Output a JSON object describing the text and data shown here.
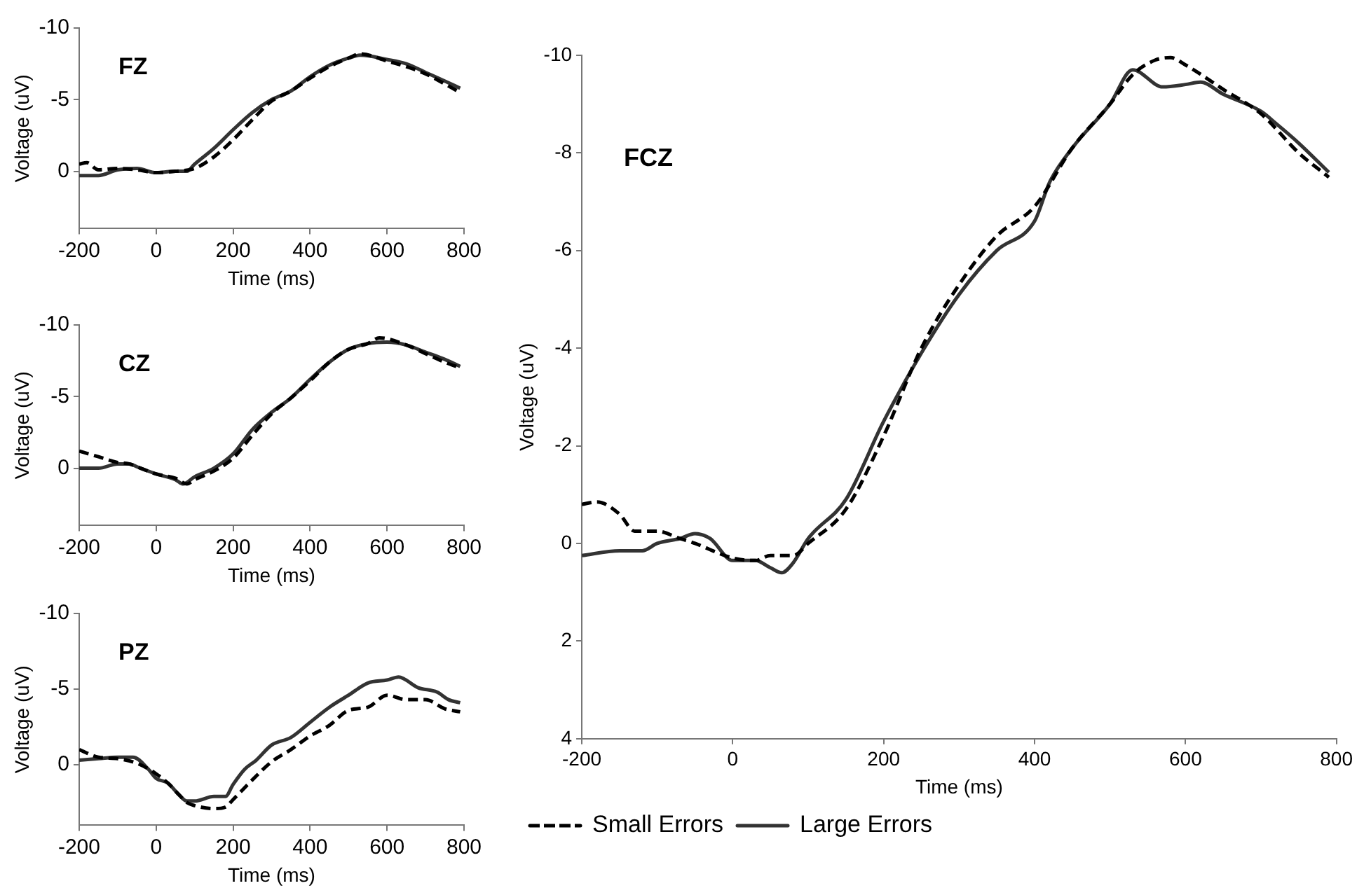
{
  "chart_data": [
    {
      "type": "line",
      "title": "FZ",
      "xlabel": "Time (ms)",
      "ylabel": "Voltage (uV)",
      "xlim": [
        -200,
        800
      ],
      "xticks": [
        -200,
        0,
        200,
        400,
        600,
        800
      ],
      "ylim": [
        4,
        -10
      ],
      "yticks": [
        -10,
        -5,
        0
      ],
      "legend": false,
      "series": [
        {
          "color": "#000000",
          "line_style": "dashed",
          "x": [
            -200,
            -180,
            -150,
            -100,
            -50,
            0,
            50,
            100,
            150,
            200,
            250,
            300,
            350,
            400,
            450,
            500,
            530,
            600,
            650,
            700,
            750,
            790
          ],
          "values": [
            -0.5,
            -0.6,
            -0.1,
            -0.2,
            -0.1,
            0.1,
            0,
            -0.2,
            -1.0,
            -2.2,
            -3.6,
            -4.9,
            -5.6,
            -6.5,
            -7.3,
            -7.9,
            -8.2,
            -7.7,
            -7.3,
            -6.8,
            -6.1,
            -5.5
          ]
        },
        {
          "color": "#333333",
          "line_style": "solid",
          "x": [
            -200,
            -150,
            -100,
            -50,
            0,
            50,
            80,
            100,
            150,
            200,
            250,
            300,
            350,
            400,
            450,
            500,
            530,
            600,
            650,
            700,
            750,
            790
          ],
          "values": [
            0.3,
            0.3,
            -0.1,
            -0.2,
            0.1,
            0,
            0,
            -0.5,
            -1.6,
            -2.9,
            -4.1,
            -5.0,
            -5.6,
            -6.6,
            -7.4,
            -7.9,
            -8.1,
            -7.8,
            -7.5,
            -6.9,
            -6.3,
            -5.8
          ]
        }
      ]
    },
    {
      "type": "line",
      "title": "CZ",
      "xlabel": "Time (ms)",
      "ylabel": "Voltage (uV)",
      "xlim": [
        -200,
        800
      ],
      "xticks": [
        -200,
        0,
        200,
        400,
        600,
        800
      ],
      "ylim": [
        4,
        -10
      ],
      "yticks": [
        -10,
        -5,
        0
      ],
      "legend": false,
      "series": [
        {
          "color": "#000000",
          "line_style": "dashed",
          "x": [
            -200,
            -150,
            -100,
            -70,
            -50,
            0,
            50,
            80,
            100,
            150,
            200,
            250,
            300,
            350,
            400,
            450,
            500,
            550,
            580,
            650,
            700,
            750,
            790
          ],
          "values": [
            -1.2,
            -0.8,
            -0.4,
            -0.3,
            -0.1,
            0.4,
            0.7,
            1.1,
            0.8,
            0.2,
            -0.7,
            -2.3,
            -3.8,
            -4.9,
            -6.1,
            -7.4,
            -8.3,
            -8.7,
            -9.1,
            -8.6,
            -8.0,
            -7.4,
            -7.0
          ]
        },
        {
          "color": "#333333",
          "line_style": "solid",
          "x": [
            -200,
            -150,
            -100,
            -70,
            -50,
            0,
            50,
            70,
            100,
            150,
            200,
            250,
            300,
            350,
            400,
            450,
            500,
            550,
            600,
            650,
            700,
            750,
            790
          ],
          "values": [
            0,
            0,
            -0.3,
            -0.3,
            -0.1,
            0.4,
            0.8,
            1.1,
            0.6,
            0,
            -1.0,
            -2.7,
            -3.9,
            -4.9,
            -6.2,
            -7.4,
            -8.3,
            -8.7,
            -8.8,
            -8.6,
            -8.1,
            -7.6,
            -7.1
          ]
        }
      ]
    },
    {
      "type": "line",
      "title": "PZ",
      "xlabel": "Time (ms)",
      "ylabel": "Voltage (uV)",
      "xlim": [
        -200,
        800
      ],
      "xticks": [
        -200,
        0,
        200,
        400,
        600,
        800
      ],
      "ylim": [
        4,
        -10
      ],
      "yticks": [
        -10,
        -5,
        0
      ],
      "legend": false,
      "series": [
        {
          "color": "#000000",
          "line_style": "dashed",
          "x": [
            -200,
            -150,
            -100,
            -50,
            0,
            30,
            60,
            80,
            100,
            150,
            180,
            200,
            250,
            300,
            350,
            400,
            450,
            500,
            550,
            600,
            650,
            700,
            750,
            790
          ],
          "values": [
            -1.0,
            -0.5,
            -0.4,
            -0.1,
            0.6,
            1.2,
            2.0,
            2.5,
            2.7,
            2.9,
            2.8,
            2.3,
            1.0,
            -0.2,
            -1.0,
            -1.9,
            -2.6,
            -3.6,
            -3.8,
            -4.6,
            -4.3,
            -4.3,
            -3.7,
            -3.5
          ]
        },
        {
          "color": "#333333",
          "line_style": "solid",
          "x": [
            -200,
            -150,
            -100,
            -60,
            -20,
            0,
            30,
            60,
            80,
            100,
            150,
            180,
            200,
            230,
            260,
            300,
            350,
            400,
            450,
            500,
            550,
            600,
            630,
            680,
            730,
            760,
            790
          ],
          "values": [
            -0.3,
            -0.4,
            -0.5,
            -0.5,
            0.3,
            0.9,
            1.2,
            2.0,
            2.4,
            2.4,
            2.1,
            2.1,
            1.3,
            0.3,
            -0.3,
            -1.3,
            -1.8,
            -2.8,
            -3.8,
            -4.6,
            -5.4,
            -5.6,
            -5.8,
            -5.1,
            -4.8,
            -4.3,
            -4.1
          ]
        }
      ]
    },
    {
      "type": "line",
      "title": "FCZ",
      "xlabel": "Time (ms)",
      "ylabel": "Voltage (uV)",
      "xlim": [
        -200,
        800
      ],
      "xticks": [
        -200,
        0,
        200,
        400,
        600,
        800
      ],
      "ylim": [
        4,
        -10
      ],
      "yticks": [
        -10,
        -8,
        -6,
        -4,
        -2,
        0,
        2,
        4
      ],
      "legend": "bottom left",
      "series": [
        {
          "name": "Small Errors",
          "color": "#000000",
          "line_style": "dashed",
          "x": [
            -200,
            -180,
            -150,
            -130,
            -100,
            -70,
            -50,
            0,
            30,
            50,
            80,
            100,
            150,
            200,
            250,
            300,
            350,
            400,
            450,
            500,
            530,
            560,
            580,
            600,
            650,
            700,
            750,
            790
          ],
          "values": [
            -0.8,
            -0.85,
            -0.6,
            -0.25,
            -0.25,
            -0.1,
            0,
            0.3,
            0.35,
            0.25,
            0.25,
            0,
            -0.7,
            -2.2,
            -4.0,
            -5.3,
            -6.3,
            -6.9,
            -8.1,
            -9.0,
            -9.6,
            -9.9,
            -9.95,
            -9.8,
            -9.3,
            -8.8,
            -8.0,
            -7.5
          ]
        },
        {
          "name": "Large Errors",
          "color": "#333333",
          "line_style": "solid",
          "x": [
            -200,
            -150,
            -120,
            -100,
            -70,
            -50,
            -30,
            0,
            30,
            50,
            65,
            80,
            100,
            150,
            200,
            250,
            300,
            350,
            400,
            420,
            450,
            500,
            530,
            570,
            600,
            620,
            650,
            700,
            720,
            750,
            790
          ],
          "values": [
            0.25,
            0.15,
            0.15,
            0,
            -0.1,
            -0.2,
            -0.1,
            0.35,
            0.35,
            0.5,
            0.6,
            0.4,
            -0.1,
            -0.9,
            -2.5,
            -3.9,
            -5.1,
            -6.0,
            -6.6,
            -7.4,
            -8.1,
            -9.0,
            -9.7,
            -9.35,
            -9.4,
            -9.45,
            -9.2,
            -8.85,
            -8.6,
            -8.2,
            -7.6
          ]
        }
      ]
    }
  ]
}
